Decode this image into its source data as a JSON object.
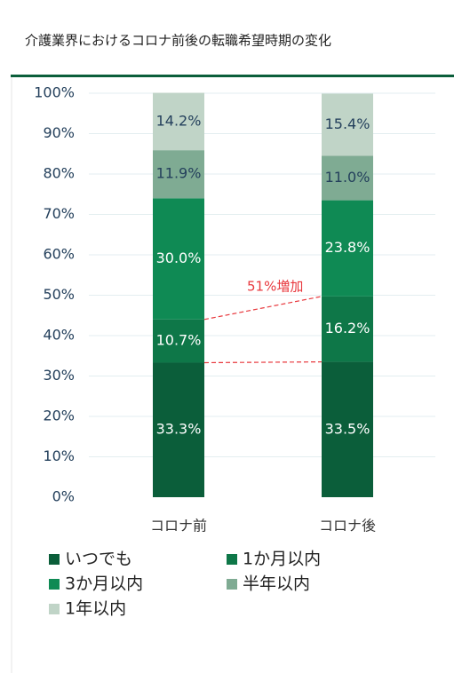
{
  "chart_data": {
    "type": "stacked_bar",
    "title": "介護業界におけるコロナ前後の転職希望時期の変化",
    "categories": [
      "コロナ前",
      "コロナ後"
    ],
    "series": [
      {
        "name": "いつでも",
        "color": "#0b5e3a",
        "label_color": "#ffffff",
        "values": [
          33.3,
          33.5
        ],
        "value_labels": [
          "33.3%",
          "33.5%"
        ]
      },
      {
        "name": "1か月以内",
        "color": "#0e7748",
        "label_color": "#ffffff",
        "values": [
          10.7,
          16.2
        ],
        "value_labels": [
          "10.7%",
          "16.2%"
        ]
      },
      {
        "name": "3か月以内",
        "color": "#0f8a54",
        "label_color": "#ffffff",
        "values": [
          30.0,
          23.8
        ],
        "value_labels": [
          "30.0%",
          "23.8%"
        ]
      },
      {
        "name": "半年以内",
        "color": "#7fab93",
        "label_color": "#24405c",
        "values": [
          11.9,
          11.0
        ],
        "value_labels": [
          "11.9%",
          "11.0%"
        ]
      },
      {
        "name": "1年以内",
        "color": "#c0d4c7",
        "label_color": "#24405c",
        "values": [
          14.2,
          15.4
        ],
        "value_labels": [
          "14.2%",
          "15.4%"
        ]
      }
    ],
    "annotation": "51%増加",
    "annotation_color": "#e8383d",
    "ylim": [
      0,
      100
    ],
    "yticks": [
      {
        "value": 0,
        "label": "0%"
      },
      {
        "value": 10,
        "label": "10%"
      },
      {
        "value": 20,
        "label": "20%"
      },
      {
        "value": 30,
        "label": "30%"
      },
      {
        "value": 40,
        "label": "40%"
      },
      {
        "value": 50,
        "label": "50%"
      },
      {
        "value": 60,
        "label": "60%"
      },
      {
        "value": 70,
        "label": "70%"
      },
      {
        "value": 80,
        "label": "80%"
      },
      {
        "value": 90,
        "label": "90%"
      },
      {
        "value": 100,
        "label": "100%"
      }
    ],
    "grid": true,
    "legend": "bottom"
  }
}
